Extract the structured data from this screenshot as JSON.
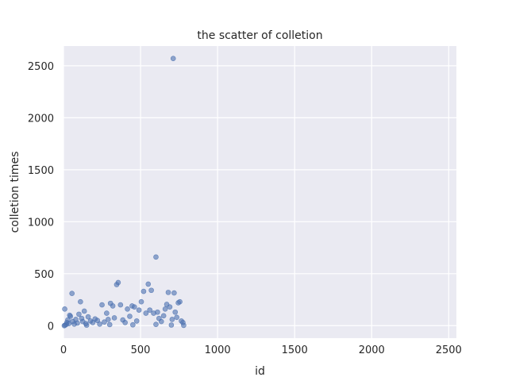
{
  "chart_data": {
    "type": "scatter",
    "title": "the scatter of colletion",
    "xlabel": "id",
    "ylabel": "colletion times",
    "xlim": [
      0,
      2550
    ],
    "ylim": [
      -120,
      2690
    ],
    "xticks": [
      0,
      500,
      1000,
      1500,
      2000,
      2500
    ],
    "yticks": [
      0,
      500,
      1000,
      1500,
      2000,
      2500
    ],
    "grid": true,
    "colors": {
      "background": "#eaeaf2",
      "grid": "#ffffff",
      "point": "#4c72b0"
    },
    "series": [
      {
        "points": [
          [
            5,
            0
          ],
          [
            10,
            5
          ],
          [
            18,
            12
          ],
          [
            22,
            30
          ],
          [
            28,
            55
          ],
          [
            35,
            20
          ],
          [
            45,
            90
          ],
          [
            55,
            310
          ],
          [
            60,
            40
          ],
          [
            70,
            15
          ],
          [
            80,
            60
          ],
          [
            90,
            25
          ],
          [
            100,
            110
          ],
          [
            110,
            230
          ],
          [
            118,
            70
          ],
          [
            125,
            40
          ],
          [
            135,
            140
          ],
          [
            145,
            20
          ],
          [
            160,
            85
          ],
          [
            175,
            45
          ],
          [
            190,
            30
          ],
          [
            205,
            65
          ],
          [
            220,
            50
          ],
          [
            235,
            15
          ],
          [
            250,
            200
          ],
          [
            265,
            35
          ],
          [
            280,
            120
          ],
          [
            290,
            60
          ],
          [
            305,
            215
          ],
          [
            320,
            190
          ],
          [
            330,
            75
          ],
          [
            345,
            395
          ],
          [
            355,
            415
          ],
          [
            370,
            200
          ],
          [
            385,
            55
          ],
          [
            400,
            30
          ],
          [
            415,
            160
          ],
          [
            430,
            90
          ],
          [
            445,
            190
          ],
          [
            460,
            180
          ],
          [
            475,
            45
          ],
          [
            490,
            150
          ],
          [
            505,
            230
          ],
          [
            520,
            330
          ],
          [
            535,
            120
          ],
          [
            550,
            400
          ],
          [
            560,
            150
          ],
          [
            570,
            340
          ],
          [
            585,
            120
          ],
          [
            600,
            660
          ],
          [
            610,
            130
          ],
          [
            620,
            70
          ],
          [
            635,
            40
          ],
          [
            650,
            95
          ],
          [
            660,
            160
          ],
          [
            670,
            205
          ],
          [
            680,
            320
          ],
          [
            690,
            180
          ],
          [
            705,
            60
          ],
          [
            712,
            2570
          ],
          [
            718,
            315
          ],
          [
            725,
            130
          ],
          [
            735,
            80
          ],
          [
            745,
            220
          ],
          [
            755,
            230
          ],
          [
            765,
            45
          ],
          [
            775,
            30
          ],
          [
            8,
            160
          ],
          [
            40,
            100
          ],
          [
            150,
            5
          ],
          [
            300,
            10
          ],
          [
            450,
            8
          ],
          [
            600,
            12
          ],
          [
            700,
            6
          ],
          [
            780,
            3
          ]
        ]
      }
    ]
  }
}
